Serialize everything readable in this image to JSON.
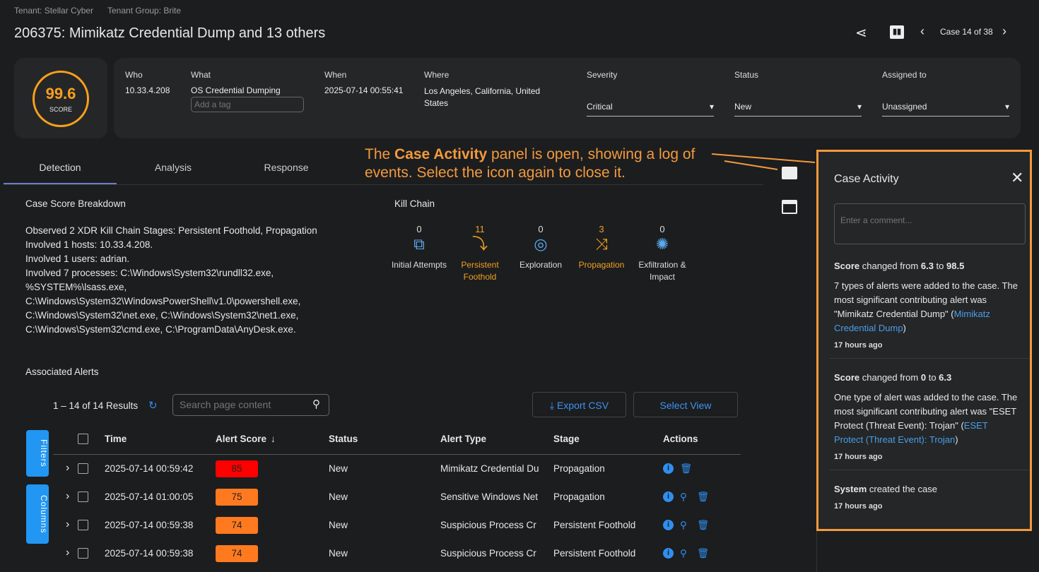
{
  "header": {
    "tenant": "Tenant: Stellar Cyber",
    "tenant_group": "Tenant Group: Brite",
    "title": "206375: Mimikatz Credential Dump and 13 others",
    "case_nav": "Case 14 of 38"
  },
  "summary": {
    "score": "99.6",
    "score_label": "SCORE",
    "who_label": "Who",
    "who": "10.33.4.208",
    "what_label": "What",
    "what": "OS Credential Dumping",
    "tag_placeholder": "Add a tag",
    "when_label": "When",
    "when": "2025-07-14 00:55:41",
    "where_label": "Where",
    "where": "Los Angeles, California, United States",
    "severity_label": "Severity",
    "severity": "Critical",
    "status_label": "Status",
    "status": "New",
    "assigned_label": "Assigned to",
    "assigned": "Unassigned"
  },
  "tabs": [
    "Detection",
    "Analysis",
    "Response"
  ],
  "annotation": "The Case Activity panel is open, showing a log of events. Select the icon again to close it.",
  "annotation_bold": "Case Activity",
  "breakdown": {
    "title": "Case Score Breakdown",
    "lines": [
      "Observed 2 XDR Kill Chain Stages: Persistent Foothold, Propagation",
      "Involved 1 hosts: 10.33.4.208.",
      "Involved 1 users: adrian.",
      "Involved 7 processes: C:\\Windows\\System32\\rundll32.exe, %SYSTEM%\\lsass.exe, C:\\Windows\\System32\\WindowsPowerShell\\v1.0\\powershell.exe, C:\\Windows\\System32\\net.exe, C:\\Windows\\System32\\net1.exe, C:\\Windows\\System32\\cmd.exe, C:\\ProgramData\\AnyDesk.exe."
    ]
  },
  "kill_chain": {
    "title": "Kill Chain",
    "stages": [
      {
        "count": "0",
        "label": "Initial Attempts",
        "icon": "binoculars-icon",
        "active": false
      },
      {
        "count": "11",
        "label": "Persistent Foothold",
        "icon": "foothold-icon",
        "active": true
      },
      {
        "count": "0",
        "label": "Exploration",
        "icon": "target-icon",
        "active": false
      },
      {
        "count": "3",
        "label": "Propagation",
        "icon": "shuffle-arrows-icon",
        "active": true
      },
      {
        "count": "0",
        "label": "Exfiltration & Impact",
        "icon": "burst-icon",
        "active": false
      }
    ]
  },
  "alerts": {
    "title": "Associated Alerts",
    "results": "1 – 14 of 14 Results",
    "search_placeholder": "Search page content",
    "export": "Export CSV",
    "select_view": "Select View",
    "filters": "Filters",
    "columns": "Columns",
    "headers": [
      "Time",
      "Alert Score",
      "Status",
      "Alert Type",
      "Stage",
      "Actions"
    ],
    "rows": [
      {
        "time": "2025-07-14 00:59:42",
        "score": "85",
        "color": "#ff0000",
        "status": "New",
        "type": "Mimikatz Credential Du",
        "stage": "Propagation",
        "search": false
      },
      {
        "time": "2025-07-14 01:00:05",
        "score": "75",
        "color": "#ff7a1f",
        "status": "New",
        "type": "Sensitive Windows Net",
        "stage": "Propagation",
        "search": true
      },
      {
        "time": "2025-07-14 00:59:38",
        "score": "74",
        "color": "#ff7a1f",
        "status": "New",
        "type": "Suspicious Process Cr",
        "stage": "Persistent Foothold",
        "search": true
      },
      {
        "time": "2025-07-14 00:59:38",
        "score": "74",
        "color": "#ff7a1f",
        "status": "New",
        "type": "Suspicious Process Cr",
        "stage": "Persistent Foothold",
        "search": true
      }
    ]
  },
  "activity": {
    "title": "Case Activity",
    "comment_placeholder": "Enter a comment...",
    "e1": {
      "a": "Score",
      "b": " changed from ",
      "c": "6.3",
      "d": " to ",
      "e": "98.5",
      "body": "7 types of alerts were added to the case. The most significant contributing alert was \"Mimikatz Credential Dump\" (",
      "link": "Mimikatz Credential Dump",
      "end": ")",
      "time": "17 hours ago"
    },
    "e2": {
      "a": "Score",
      "b": " changed from ",
      "c": "0",
      "d": " to ",
      "e": "6.3",
      "body": "One type of alert was added to the case. The most significant contributing alert was \"ESET Protect (Threat Event): Trojan\" (",
      "link": "ESET Protect (Threat Event): Trojan",
      "end": ")",
      "time": "17 hours ago"
    },
    "e3": {
      "a": "System",
      "b": " created the case",
      "time": "17 hours ago"
    }
  },
  "colors": {
    "accent": "#2f8ff0",
    "orange": "#f0a020",
    "annotation": "#f39a3c"
  }
}
